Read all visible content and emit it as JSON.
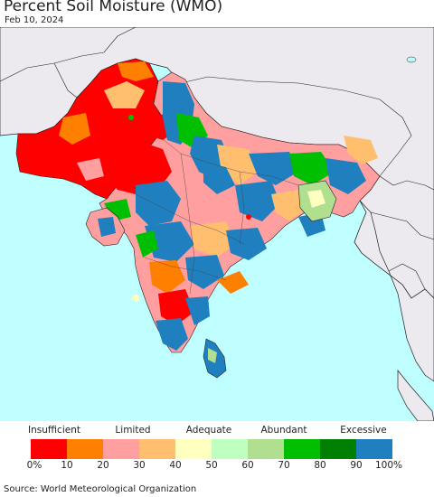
{
  "title": "Percent Soil Moisture (WMO)",
  "date": "Feb 10, 2024",
  "source": "Source: World Meteorological Organization",
  "colors": {
    "ocean": "#bfffff",
    "land_outside": "#ece9ef",
    "border": "#222222"
  },
  "legend": {
    "categories": [
      "Insufficient",
      "Limited",
      "Adequate",
      "Abundant",
      "Excessive"
    ],
    "ticks": [
      "0%",
      "10",
      "20",
      "30",
      "40",
      "50",
      "60",
      "70",
      "80",
      "90",
      "100%"
    ],
    "colors": [
      "#ff0000",
      "#ff7f00",
      "#ff9f9f",
      "#ffbf6f",
      "#ffffbf",
      "#bfffbf",
      "#afdf8f",
      "#00bf00",
      "#007f00",
      "#1f7fbf"
    ]
  }
}
